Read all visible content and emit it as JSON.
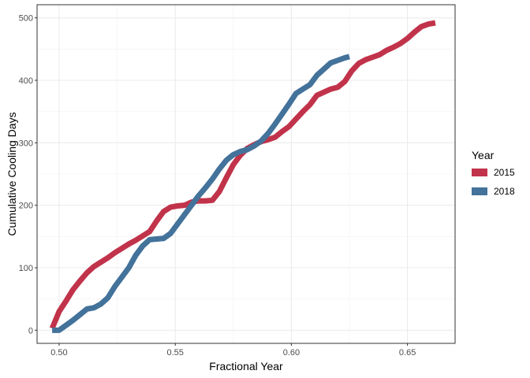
{
  "chart_data": {
    "type": "line",
    "title": "",
    "xlabel": "Fractional Year",
    "ylabel": "Cumulative Cooling Days",
    "xlim": [
      0.4905,
      0.6705
    ],
    "ylim": [
      -21,
      521
    ],
    "x_ticks": [
      0.5,
      0.55,
      0.6,
      0.65
    ],
    "x_tick_labels": [
      "0.50",
      "0.55",
      "0.60",
      "0.65"
    ],
    "y_ticks": [
      0,
      100,
      200,
      300,
      400,
      500
    ],
    "y_tick_labels": [
      "0",
      "100",
      "200",
      "300",
      "400",
      "500"
    ],
    "grid": true,
    "legend": {
      "title": "Year",
      "position": "right"
    },
    "series": [
      {
        "name": "2015",
        "color": "#c1334a",
        "x": [
          0.497,
          0.5,
          0.503,
          0.506,
          0.509,
          0.512,
          0.515,
          0.518,
          0.521,
          0.524,
          0.527,
          0.53,
          0.533,
          0.536,
          0.539,
          0.542,
          0.545,
          0.548,
          0.551,
          0.554,
          0.557,
          0.56,
          0.563,
          0.566,
          0.569,
          0.572,
          0.575,
          0.578,
          0.581,
          0.584,
          0.587,
          0.59,
          0.593,
          0.596,
          0.599,
          0.602,
          0.605,
          0.608,
          0.611,
          0.614,
          0.617,
          0.62,
          0.623,
          0.626,
          0.629,
          0.632,
          0.635,
          0.638,
          0.641,
          0.644,
          0.647,
          0.65,
          0.653,
          0.656,
          0.659,
          0.662
        ],
        "y": [
          3,
          30,
          47,
          65,
          79,
          92,
          102,
          109,
          116,
          124,
          131,
          138,
          144,
          151,
          158,
          175,
          190,
          197,
          199,
          200,
          205,
          207,
          207,
          208,
          222,
          244,
          265,
          280,
          291,
          297,
          302,
          305,
          309,
          318,
          326,
          338,
          350,
          361,
          376,
          381,
          386,
          389,
          398,
          415,
          427,
          433,
          437,
          441,
          448,
          453,
          459,
          467,
          477,
          486,
          490,
          492
        ]
      },
      {
        "name": "2018",
        "color": "#43729a",
        "x": [
          0.497,
          0.5,
          0.503,
          0.506,
          0.509,
          0.512,
          0.515,
          0.518,
          0.521,
          0.524,
          0.527,
          0.53,
          0.533,
          0.536,
          0.539,
          0.542,
          0.545,
          0.548,
          0.551,
          0.554,
          0.557,
          0.56,
          0.563,
          0.566,
          0.569,
          0.572,
          0.575,
          0.578,
          0.581,
          0.584,
          0.587,
          0.59,
          0.593,
          0.596,
          0.599,
          0.602,
          0.605,
          0.608,
          0.611,
          0.614,
          0.617,
          0.62,
          0.623,
          0.625
        ],
        "y": [
          0,
          0,
          8,
          16,
          25,
          34,
          36,
          42,
          52,
          70,
          85,
          100,
          120,
          135,
          145,
          146,
          147,
          155,
          170,
          185,
          200,
          215,
          228,
          242,
          258,
          272,
          281,
          286,
          289,
          295,
          303,
          315,
          330,
          346,
          362,
          379,
          386,
          393,
          408,
          418,
          428,
          432,
          436,
          438
        ]
      }
    ]
  }
}
